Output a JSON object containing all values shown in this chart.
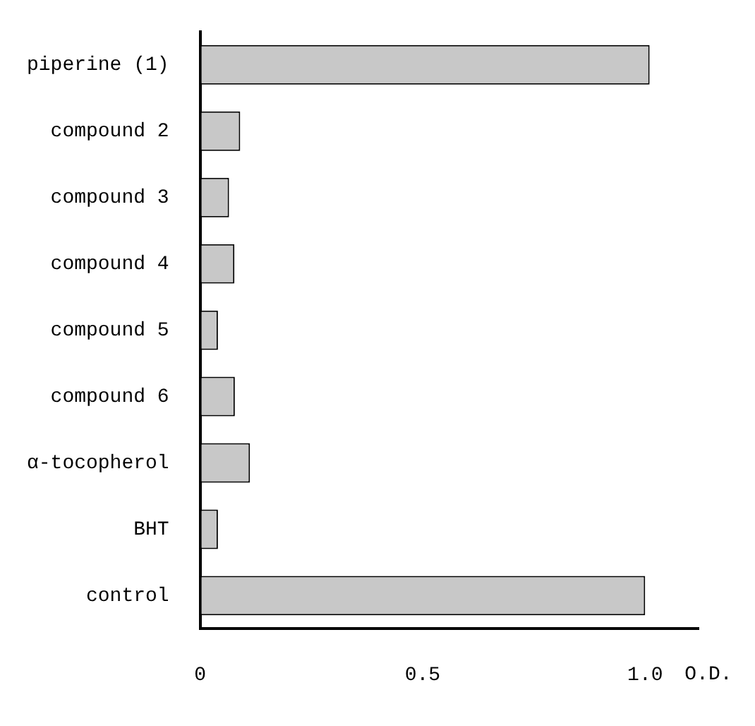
{
  "chart_data": {
    "type": "bar",
    "orientation": "horizontal",
    "xlabel": "O.D.",
    "categories": [
      "piperine (1)",
      "compound 2",
      "compound 3",
      "compound 4",
      "compound 5",
      "compound 6",
      "α-tocopherol",
      "BHT",
      "control"
    ],
    "values": [
      1.01,
      0.09,
      0.065,
      0.077,
      0.04,
      0.078,
      0.112,
      0.04,
      1.0
    ],
    "color": "#c8c8c8",
    "xlim": [
      0,
      1.12
    ],
    "xticks": [
      0,
      0.5,
      {
        "value": 1,
        "label": "1.0"
      }
    ],
    "grid": false,
    "legend": false
  }
}
